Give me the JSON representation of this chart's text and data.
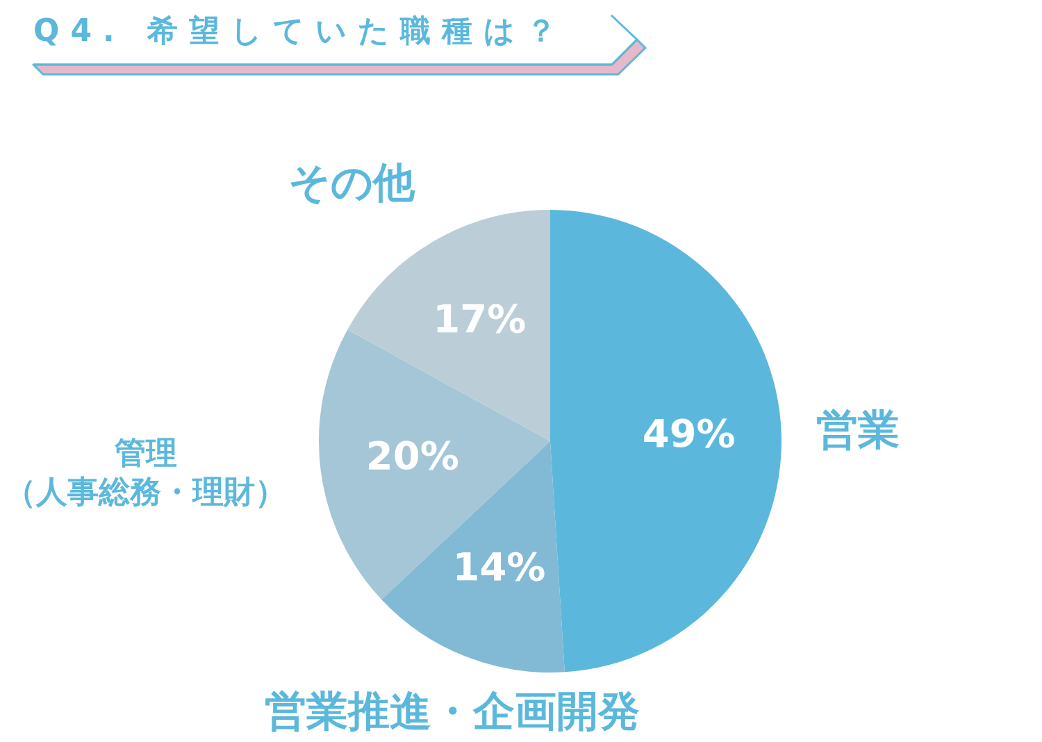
{
  "chart_data": {
    "type": "pie",
    "title": "Q4. 希望していた職種は？",
    "categories": [
      "営業",
      "営業推進・企画開発",
      "管理（人事総務・理財）",
      "その他"
    ],
    "values": [
      49,
      14,
      20,
      17
    ],
    "colors": [
      "#5bb8dc",
      "#82b9d5",
      "#a4c6d6",
      "#bbced8"
    ],
    "value_labels": [
      "49%",
      "14%",
      "20%",
      "17%"
    ],
    "legend": false
  }
}
